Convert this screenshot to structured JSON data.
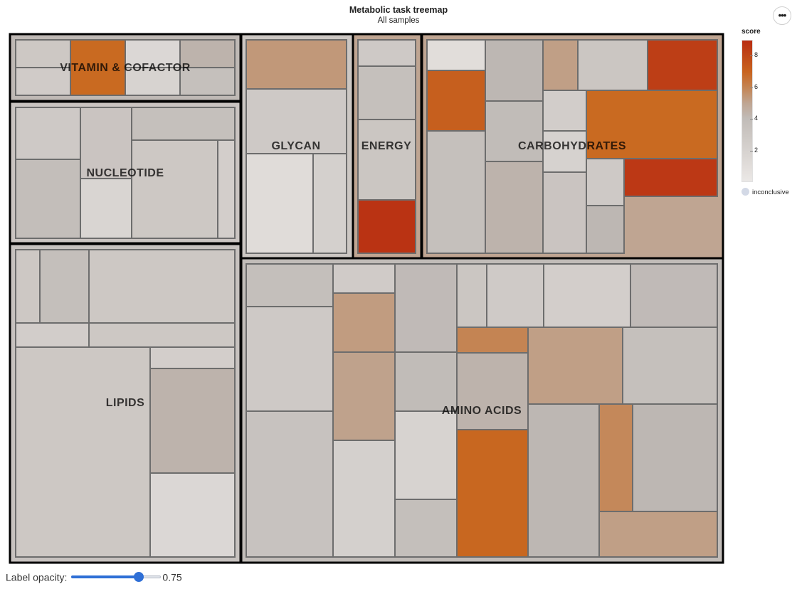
{
  "title": "Metabolic task treemap",
  "subtitle": "All samples",
  "menu": {
    "label": "•••"
  },
  "colors": {
    "low": "#ebe8e6",
    "mid": "#bcb6b2",
    "high": "#c96a21",
    "max": "#b92d12",
    "inconclusive": "#d3d9e6"
  },
  "legend": {
    "title": "score",
    "range": [
      0,
      9
    ],
    "ticks": [
      {
        "label": "8",
        "value": 8
      },
      {
        "label": "6",
        "value": 6
      },
      {
        "label": "4",
        "value": 4
      },
      {
        "label": "2",
        "value": 2
      }
    ],
    "inconclusive_label": "inconclusive"
  },
  "controls": {
    "label_opacity_label": "Label opacity:",
    "label_opacity_value": "0.75",
    "label_opacity": 0.75
  },
  "chart_data": {
    "type": "treemap",
    "title": "Metabolic task treemap",
    "color_metric": "score",
    "groups": [
      {
        "name": "VITAMIN & COFACTOR",
        "score": 4.2,
        "tiles": [
          2.9,
          6.8,
          1.5,
          4.6,
          2.6,
          1.9,
          3.6,
          2.2
        ]
      },
      {
        "name": "NUCLEOTIDE",
        "score": 3.2,
        "tiles": [
          2.8,
          3.8,
          3.2,
          1.7,
          3.6,
          2.9,
          2.3
        ]
      },
      {
        "name": "GLYCAN",
        "score": 3.0,
        "tiles": [
          5.4,
          2.8,
          1.1,
          2.2
        ]
      },
      {
        "name": "ENERGY",
        "score": 5.0,
        "tiles": [
          2.8,
          3.6,
          3.1,
          8.8
        ]
      },
      {
        "name": "CARBOHYDRATES",
        "score": 5.0,
        "tiles": [
          1.0,
          4.4,
          5.2,
          3.1,
          8.4,
          7.2,
          4.0,
          2.4,
          6.8,
          3.6,
          4.6,
          2.0,
          3.2,
          2.8,
          8.6,
          4.4
        ]
      },
      {
        "name": "LIPIDS",
        "score": 3.4,
        "tiles": [
          2.9,
          3.7,
          2.9,
          2.4,
          2.9,
          2.9,
          2.3,
          4.6,
          1.5
        ]
      },
      {
        "name": "AMINO ACIDS",
        "score": 4.0,
        "tiles": [
          3.7,
          2.6,
          4.1,
          5.3,
          5.1,
          4.0,
          3.1,
          2.7,
          2.3,
          4.1,
          5.2,
          3.6,
          2.8,
          3.4,
          2.2,
          1.9,
          3.7,
          6.0,
          4.6,
          4.4,
          5.9,
          4.4,
          6.9,
          5.2
        ]
      }
    ]
  }
}
